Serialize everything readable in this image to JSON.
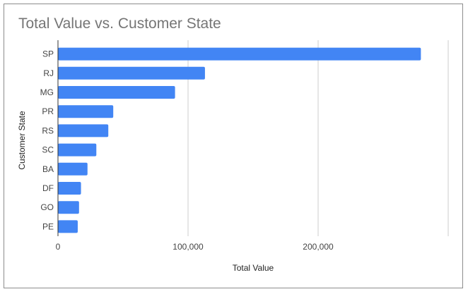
{
  "chart_data": {
    "type": "bar",
    "orientation": "horizontal",
    "title": "Total Value vs. Customer State",
    "xlabel": "Total Value",
    "ylabel": "Customer State",
    "categories": [
      "SP",
      "RJ",
      "MG",
      "PR",
      "RS",
      "SC",
      "BA",
      "DF",
      "GO",
      "PE"
    ],
    "values": [
      279000,
      113000,
      90000,
      42500,
      38700,
      29500,
      22700,
      17700,
      16200,
      15200
    ],
    "xlim": [
      0,
      300000
    ],
    "xticks": [
      0,
      100000,
      200000
    ],
    "xtick_labels": [
      "0",
      "100,000",
      "200,000"
    ],
    "grid": true,
    "legend": "none",
    "colors": {
      "bar": "#4285f4",
      "grid": "#cccccc",
      "axis": "#333333"
    }
  }
}
